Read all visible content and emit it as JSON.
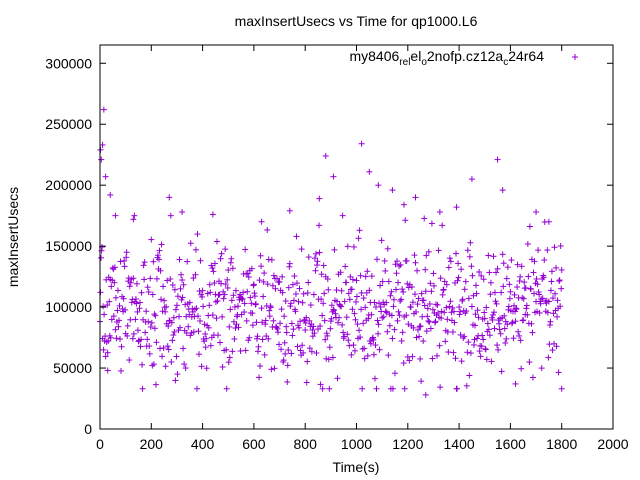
{
  "chart_data": {
    "type": "scatter",
    "title": "maxInsertUsecs vs Time for qp1000.L6",
    "xlabel": "Time(s)",
    "ylabel": "maxInsertUsecs",
    "xlim": [
      0,
      2000
    ],
    "ylim": [
      0,
      315000
    ],
    "x_ticks": [
      0,
      200,
      400,
      600,
      800,
      1000,
      1200,
      1400,
      1600,
      1800,
      2000
    ],
    "y_ticks": [
      0,
      50000,
      100000,
      150000,
      200000,
      250000,
      300000
    ],
    "grid": false,
    "legend_position": "top-right",
    "series": [
      {
        "name_parts": {
          "part1": "my8406",
          "sub1": "rel",
          "part2": "el",
          "sub2": "o",
          "part3": "2nofp.cz12a",
          "sub3": "c",
          "part4": "24r64"
        },
        "color": "#9400d3",
        "marker": "+",
        "x_range": [
          0,
          1800
        ],
        "x_step": 2,
        "typical_range": [
          40000,
          150000
        ],
        "outliers": [
          {
            "x": 2,
            "y": 229000
          },
          {
            "x": 5,
            "y": 221000
          },
          {
            "x": 10,
            "y": 233000
          },
          {
            "x": 15,
            "y": 262000
          },
          {
            "x": 22,
            "y": 207000
          },
          {
            "x": 40,
            "y": 192000
          },
          {
            "x": 60,
            "y": 175000
          },
          {
            "x": 130,
            "y": 172000
          },
          {
            "x": 270,
            "y": 190000
          },
          {
            "x": 320,
            "y": 178000
          },
          {
            "x": 440,
            "y": 176000
          },
          {
            "x": 630,
            "y": 170000
          },
          {
            "x": 740,
            "y": 179000
          },
          {
            "x": 855,
            "y": 189000
          },
          {
            "x": 880,
            "y": 224000
          },
          {
            "x": 910,
            "y": 207000
          },
          {
            "x": 1020,
            "y": 234000
          },
          {
            "x": 1050,
            "y": 211000
          },
          {
            "x": 1085,
            "y": 200000
          },
          {
            "x": 1140,
            "y": 196000
          },
          {
            "x": 1185,
            "y": 184000
          },
          {
            "x": 1230,
            "y": 190000
          },
          {
            "x": 1325,
            "y": 178000
          },
          {
            "x": 1390,
            "y": 182000
          },
          {
            "x": 1450,
            "y": 205000
          },
          {
            "x": 1550,
            "y": 221000
          },
          {
            "x": 1570,
            "y": 196000
          },
          {
            "x": 1700,
            "y": 178000
          },
          {
            "x": 1750,
            "y": 170000
          },
          {
            "x": 1270,
            "y": 28000
          },
          {
            "x": 1800,
            "y": 33000
          },
          {
            "x": 30,
            "y": 48000
          },
          {
            "x": 1620,
            "y": 37000
          }
        ]
      }
    ]
  }
}
